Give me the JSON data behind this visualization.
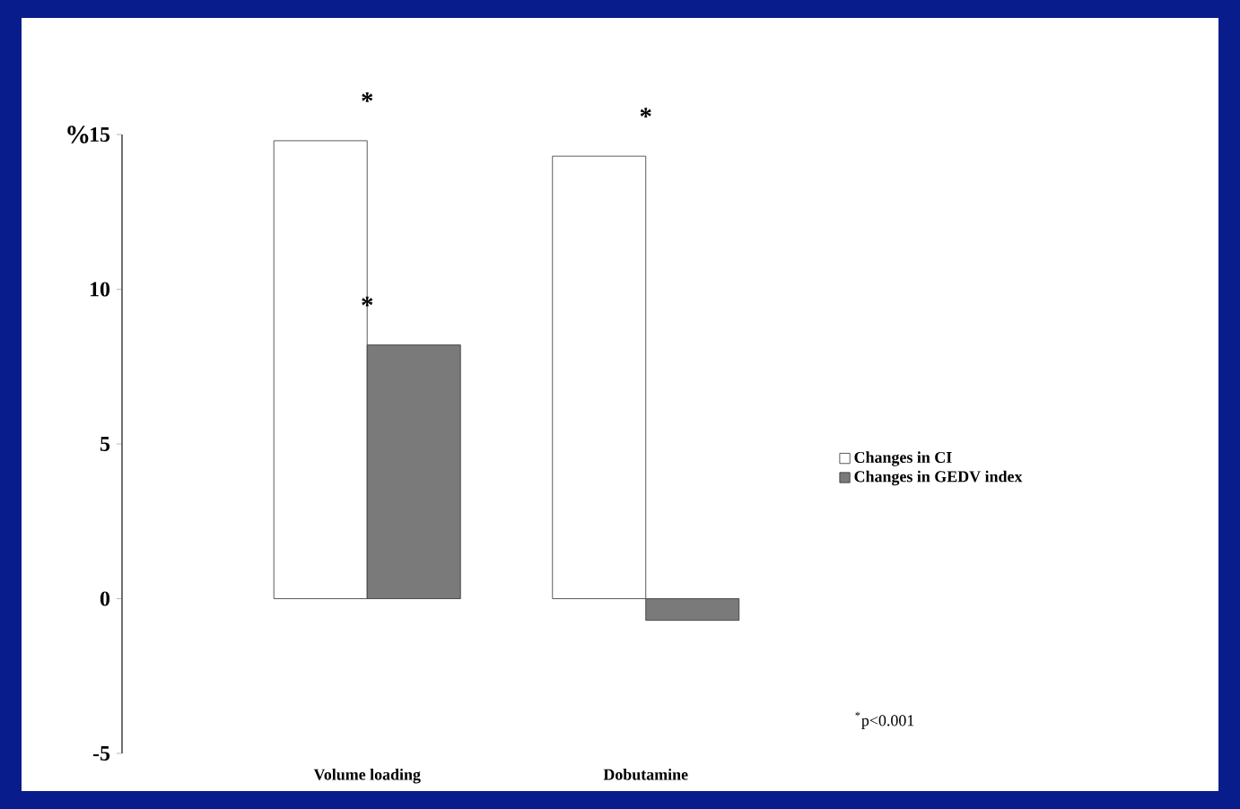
{
  "chart_data": {
    "type": "bar",
    "ylabel": "%",
    "categories": [
      "Volume loading",
      "Dobutamine"
    ],
    "series": [
      {
        "name": "Changes in CI",
        "color": "#ffffff",
        "values": [
          14.8,
          14.3
        ],
        "value_labels": [
          "*",
          "*"
        ]
      },
      {
        "name": "Changes in GEDV index",
        "color": "#7a7a7a",
        "values": [
          8.2,
          -0.7
        ],
        "value_labels": [
          "*",
          null
        ]
      }
    ],
    "ylim": [
      -5,
      15
    ],
    "yticks": [
      -5,
      0,
      5,
      10,
      15
    ],
    "legend": "right",
    "grid": false,
    "annotations": [
      "$^{*}$p<0.001"
    ]
  }
}
